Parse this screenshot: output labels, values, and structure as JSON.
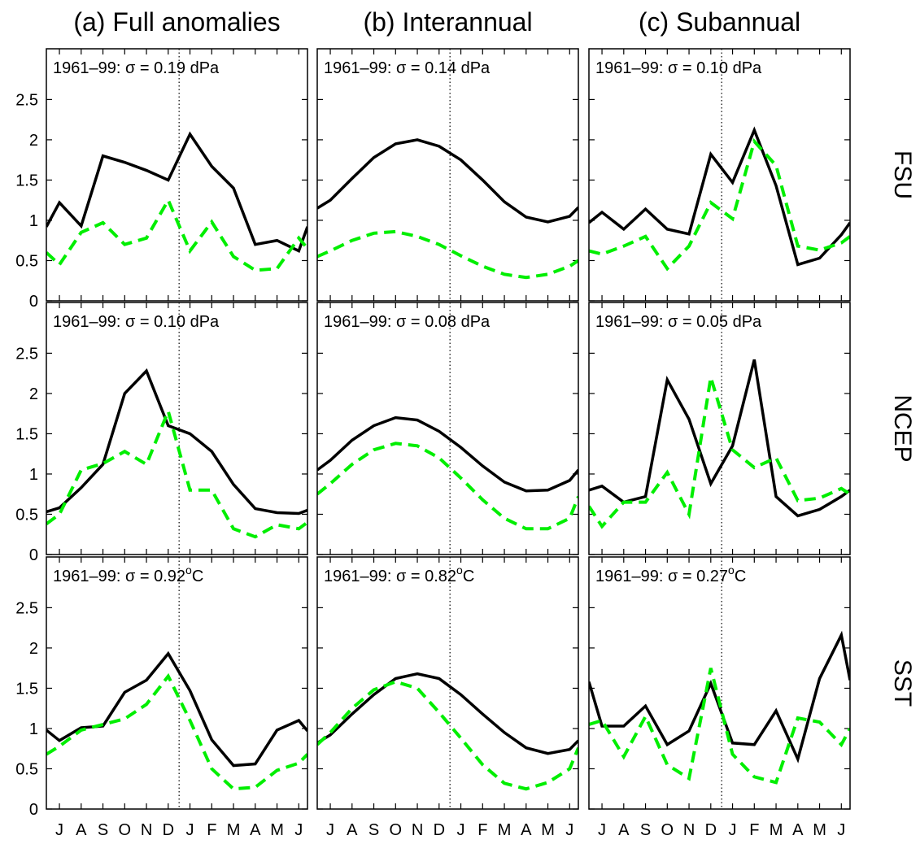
{
  "column_titles": [
    "(a) Full anomalies",
    "(b) Interannual",
    "(c) Subannual"
  ],
  "row_labels": [
    "FSU",
    "NCEP",
    "SST"
  ],
  "chart_data": [
    {
      "type": "line",
      "annotation": [
        "1961–99:  σ = 0.19 dPa"
      ],
      "x": [
        0.4,
        1,
        2,
        3,
        4,
        5,
        6,
        7,
        8,
        9,
        10,
        11,
        12,
        12.4
      ],
      "xlim": [
        0.4,
        12.4
      ],
      "ylim": [
        0,
        3.13
      ],
      "yticks": [
        0,
        0.5,
        1,
        1.5,
        2,
        2.5
      ],
      "xticks": [
        {
          "value": 1,
          "label": "J"
        },
        {
          "value": 2,
          "label": "A"
        },
        {
          "value": 3,
          "label": "S"
        },
        {
          "value": 4,
          "label": "O"
        },
        {
          "value": 5,
          "label": "N"
        },
        {
          "value": 6,
          "label": "D"
        },
        {
          "value": 7,
          "label": "J"
        },
        {
          "value": 8,
          "label": "F"
        },
        {
          "value": 9,
          "label": "M"
        },
        {
          "value": 10,
          "label": "A"
        },
        {
          "value": 11,
          "label": "M"
        },
        {
          "value": 12,
          "label": "J"
        }
      ],
      "divider": 6.5,
      "series": [
        {
          "color": "#000000",
          "dashed": false,
          "values": [
            0.92,
            1.22,
            0.93,
            1.8,
            1.72,
            1.62,
            1.5,
            2.07,
            1.67,
            1.4,
            0.7,
            0.75,
            0.62,
            0.92
          ]
        },
        {
          "color": "#00ee00",
          "dashed": true,
          "values": [
            0.6,
            0.45,
            0.85,
            0.97,
            0.7,
            0.78,
            1.25,
            0.62,
            0.98,
            0.55,
            0.38,
            0.4,
            0.78,
            0.65
          ]
        }
      ]
    },
    {
      "type": "line",
      "annotation": [
        "1961–99:  σ = 0.14 dPa"
      ],
      "x": [
        0.4,
        1,
        2,
        3,
        4,
        5,
        6,
        7,
        8,
        9,
        10,
        11,
        12,
        12.4
      ],
      "xlim": [
        0.4,
        12.4
      ],
      "ylim": [
        0,
        3.13
      ],
      "yticks": [
        0,
        0.5,
        1,
        1.5,
        2,
        2.5
      ],
      "xticks": [
        {
          "value": 1,
          "label": "J"
        },
        {
          "value": 2,
          "label": "A"
        },
        {
          "value": 3,
          "label": "S"
        },
        {
          "value": 4,
          "label": "O"
        },
        {
          "value": 5,
          "label": "N"
        },
        {
          "value": 6,
          "label": "D"
        },
        {
          "value": 7,
          "label": "J"
        },
        {
          "value": 8,
          "label": "F"
        },
        {
          "value": 9,
          "label": "M"
        },
        {
          "value": 10,
          "label": "A"
        },
        {
          "value": 11,
          "label": "M"
        },
        {
          "value": 12,
          "label": "J"
        }
      ],
      "divider": 6.5,
      "series": [
        {
          "color": "#000000",
          "dashed": false,
          "values": [
            1.15,
            1.25,
            1.52,
            1.78,
            1.95,
            2.0,
            1.92,
            1.75,
            1.5,
            1.23,
            1.04,
            0.98,
            1.05,
            1.16
          ]
        },
        {
          "color": "#00ee00",
          "dashed": true,
          "values": [
            0.55,
            0.62,
            0.75,
            0.84,
            0.86,
            0.8,
            0.7,
            0.56,
            0.43,
            0.33,
            0.29,
            0.33,
            0.43,
            0.5
          ]
        }
      ]
    },
    {
      "type": "line",
      "annotation": [
        "1961–99:  σ = 0.10 dPa"
      ],
      "x": [
        0.4,
        1,
        2,
        3,
        4,
        5,
        6,
        7,
        8,
        9,
        10,
        11,
        12,
        12.4
      ],
      "xlim": [
        0.4,
        12.4
      ],
      "ylim": [
        0,
        3.13
      ],
      "yticks": [
        0,
        0.5,
        1,
        1.5,
        2,
        2.5
      ],
      "xticks": [
        {
          "value": 1,
          "label": "J"
        },
        {
          "value": 2,
          "label": "A"
        },
        {
          "value": 3,
          "label": "S"
        },
        {
          "value": 4,
          "label": "O"
        },
        {
          "value": 5,
          "label": "N"
        },
        {
          "value": 6,
          "label": "D"
        },
        {
          "value": 7,
          "label": "J"
        },
        {
          "value": 8,
          "label": "F"
        },
        {
          "value": 9,
          "label": "M"
        },
        {
          "value": 10,
          "label": "A"
        },
        {
          "value": 11,
          "label": "M"
        },
        {
          "value": 12,
          "label": "J"
        }
      ],
      "divider": 6.5,
      "series": [
        {
          "color": "#000000",
          "dashed": false,
          "values": [
            0.97,
            1.1,
            0.89,
            1.14,
            0.89,
            0.83,
            1.82,
            1.47,
            2.12,
            1.43,
            0.45,
            0.53,
            0.82,
            0.97
          ]
        },
        {
          "color": "#00ee00",
          "dashed": true,
          "values": [
            0.62,
            0.58,
            0.68,
            0.8,
            0.4,
            0.68,
            1.22,
            1.02,
            1.98,
            1.68,
            0.68,
            0.63,
            0.72,
            0.8
          ]
        }
      ]
    },
    {
      "type": "line",
      "annotation": [
        "1961–99:  σ = 0.10 dPa"
      ],
      "x": [
        0.4,
        1,
        2,
        3,
        4,
        5,
        6,
        7,
        8,
        9,
        10,
        11,
        12,
        12.4
      ],
      "xlim": [
        0.4,
        12.4
      ],
      "ylim": [
        0,
        3.13
      ],
      "yticks": [
        0,
        0.5,
        1,
        1.5,
        2,
        2.5
      ],
      "xticks": [
        {
          "value": 1,
          "label": "J"
        },
        {
          "value": 2,
          "label": "A"
        },
        {
          "value": 3,
          "label": "S"
        },
        {
          "value": 4,
          "label": "O"
        },
        {
          "value": 5,
          "label": "N"
        },
        {
          "value": 6,
          "label": "D"
        },
        {
          "value": 7,
          "label": "J"
        },
        {
          "value": 8,
          "label": "F"
        },
        {
          "value": 9,
          "label": "M"
        },
        {
          "value": 10,
          "label": "A"
        },
        {
          "value": 11,
          "label": "M"
        },
        {
          "value": 12,
          "label": "J"
        }
      ],
      "divider": 6.5,
      "series": [
        {
          "color": "#000000",
          "dashed": false,
          "values": [
            0.53,
            0.58,
            0.83,
            1.12,
            2.0,
            2.28,
            1.6,
            1.5,
            1.28,
            0.87,
            0.57,
            0.52,
            0.51,
            0.55
          ]
        },
        {
          "color": "#00ee00",
          "dashed": true,
          "values": [
            0.38,
            0.5,
            1.05,
            1.13,
            1.28,
            1.12,
            1.78,
            0.8,
            0.8,
            0.32,
            0.22,
            0.37,
            0.32,
            0.4
          ]
        }
      ]
    },
    {
      "type": "line",
      "annotation": [
        "1961–99:  σ = 0.08 dPa"
      ],
      "x": [
        0.4,
        1,
        2,
        3,
        4,
        5,
        6,
        7,
        8,
        9,
        10,
        11,
        12,
        12.4
      ],
      "xlim": [
        0.4,
        12.4
      ],
      "ylim": [
        0,
        3.13
      ],
      "yticks": [
        0,
        0.5,
        1,
        1.5,
        2,
        2.5
      ],
      "xticks": [
        {
          "value": 1,
          "label": "J"
        },
        {
          "value": 2,
          "label": "A"
        },
        {
          "value": 3,
          "label": "S"
        },
        {
          "value": 4,
          "label": "O"
        },
        {
          "value": 5,
          "label": "N"
        },
        {
          "value": 6,
          "label": "D"
        },
        {
          "value": 7,
          "label": "J"
        },
        {
          "value": 8,
          "label": "F"
        },
        {
          "value": 9,
          "label": "M"
        },
        {
          "value": 10,
          "label": "A"
        },
        {
          "value": 11,
          "label": "M"
        },
        {
          "value": 12,
          "label": "J"
        }
      ],
      "divider": 6.5,
      "series": [
        {
          "color": "#000000",
          "dashed": false,
          "values": [
            1.05,
            1.17,
            1.42,
            1.6,
            1.7,
            1.67,
            1.53,
            1.33,
            1.1,
            0.9,
            0.79,
            0.8,
            0.92,
            1.05
          ]
        },
        {
          "color": "#00ee00",
          "dashed": true,
          "values": [
            0.75,
            0.88,
            1.12,
            1.3,
            1.38,
            1.35,
            1.2,
            0.95,
            0.68,
            0.45,
            0.32,
            0.32,
            0.45,
            0.72
          ]
        }
      ]
    },
    {
      "type": "line",
      "annotation": [
        "1961–99:  σ = 0.05 dPa"
      ],
      "x": [
        0.4,
        1,
        2,
        3,
        4,
        5,
        6,
        7,
        8,
        9,
        10,
        11,
        12,
        12.4
      ],
      "xlim": [
        0.4,
        12.4
      ],
      "ylim": [
        0,
        3.13
      ],
      "yticks": [
        0,
        0.5,
        1,
        1.5,
        2,
        2.5
      ],
      "xticks": [
        {
          "value": 1,
          "label": "J"
        },
        {
          "value": 2,
          "label": "A"
        },
        {
          "value": 3,
          "label": "S"
        },
        {
          "value": 4,
          "label": "O"
        },
        {
          "value": 5,
          "label": "N"
        },
        {
          "value": 6,
          "label": "D"
        },
        {
          "value": 7,
          "label": "J"
        },
        {
          "value": 8,
          "label": "F"
        },
        {
          "value": 9,
          "label": "M"
        },
        {
          "value": 10,
          "label": "A"
        },
        {
          "value": 11,
          "label": "M"
        },
        {
          "value": 12,
          "label": "J"
        }
      ],
      "divider": 6.5,
      "series": [
        {
          "color": "#000000",
          "dashed": false,
          "values": [
            0.8,
            0.85,
            0.65,
            0.72,
            2.17,
            1.68,
            0.88,
            1.35,
            2.42,
            0.72,
            0.48,
            0.56,
            0.72,
            0.8
          ]
        },
        {
          "color": "#00ee00",
          "dashed": true,
          "values": [
            0.6,
            0.35,
            0.65,
            0.65,
            1.02,
            0.5,
            2.2,
            1.3,
            1.08,
            1.2,
            0.67,
            0.7,
            0.82,
            0.75
          ]
        }
      ]
    },
    {
      "type": "line",
      "annotation": [
        "1961–99:  σ = 0.92",
        "o",
        "C"
      ],
      "x": [
        0.4,
        1,
        2,
        3,
        4,
        5,
        6,
        7,
        8,
        9,
        10,
        11,
        12,
        12.4
      ],
      "xlim": [
        0.4,
        12.4
      ],
      "ylim": [
        0,
        3.13
      ],
      "yticks": [
        0,
        0.5,
        1,
        1.5,
        2,
        2.5
      ],
      "xticks": [
        {
          "value": 1,
          "label": "J"
        },
        {
          "value": 2,
          "label": "A"
        },
        {
          "value": 3,
          "label": "S"
        },
        {
          "value": 4,
          "label": "O"
        },
        {
          "value": 5,
          "label": "N"
        },
        {
          "value": 6,
          "label": "D"
        },
        {
          "value": 7,
          "label": "J"
        },
        {
          "value": 8,
          "label": "F"
        },
        {
          "value": 9,
          "label": "M"
        },
        {
          "value": 10,
          "label": "A"
        },
        {
          "value": 11,
          "label": "M"
        },
        {
          "value": 12,
          "label": "J"
        }
      ],
      "divider": 6.5,
      "series": [
        {
          "color": "#000000",
          "dashed": false,
          "values": [
            0.98,
            0.85,
            1.01,
            1.03,
            1.45,
            1.6,
            1.93,
            1.47,
            0.86,
            0.54,
            0.56,
            0.98,
            1.1,
            0.97
          ]
        },
        {
          "color": "#00ee00",
          "dashed": true,
          "values": [
            0.68,
            0.78,
            0.98,
            1.05,
            1.12,
            1.3,
            1.65,
            1.1,
            0.5,
            0.25,
            0.27,
            0.48,
            0.57,
            0.68
          ]
        }
      ]
    },
    {
      "type": "line",
      "annotation": [
        "1961–99:  σ = 0.82",
        "o",
        "C"
      ],
      "x": [
        0.4,
        1,
        2,
        3,
        4,
        5,
        6,
        7,
        8,
        9,
        10,
        11,
        12,
        12.4
      ],
      "xlim": [
        0.4,
        12.4
      ],
      "ylim": [
        0,
        3.13
      ],
      "yticks": [
        0,
        0.5,
        1,
        1.5,
        2,
        2.5
      ],
      "xticks": [
        {
          "value": 1,
          "label": "J"
        },
        {
          "value": 2,
          "label": "A"
        },
        {
          "value": 3,
          "label": "S"
        },
        {
          "value": 4,
          "label": "O"
        },
        {
          "value": 5,
          "label": "N"
        },
        {
          "value": 6,
          "label": "D"
        },
        {
          "value": 7,
          "label": "J"
        },
        {
          "value": 8,
          "label": "F"
        },
        {
          "value": 9,
          "label": "M"
        },
        {
          "value": 10,
          "label": "A"
        },
        {
          "value": 11,
          "label": "M"
        },
        {
          "value": 12,
          "label": "J"
        }
      ],
      "divider": 6.5,
      "series": [
        {
          "color": "#000000",
          "dashed": false,
          "values": [
            0.82,
            0.92,
            1.18,
            1.42,
            1.62,
            1.68,
            1.62,
            1.42,
            1.18,
            0.95,
            0.76,
            0.69,
            0.74,
            0.85
          ]
        },
        {
          "color": "#00ee00",
          "dashed": true,
          "values": [
            0.8,
            0.95,
            1.25,
            1.48,
            1.58,
            1.5,
            1.2,
            0.88,
            0.55,
            0.32,
            0.25,
            0.33,
            0.5,
            0.76
          ]
        }
      ]
    },
    {
      "type": "line",
      "annotation": [
        "1961–99:  σ = 0.27",
        "o",
        "C"
      ],
      "x": [
        0.4,
        1,
        2,
        3,
        4,
        5,
        6,
        7,
        8,
        9,
        10,
        11,
        12,
        12.4
      ],
      "xlim": [
        0.4,
        12.4
      ],
      "ylim": [
        0,
        3.13
      ],
      "yticks": [
        0,
        0.5,
        1,
        1.5,
        2,
        2.5
      ],
      "xticks": [
        {
          "value": 1,
          "label": "J"
        },
        {
          "value": 2,
          "label": "A"
        },
        {
          "value": 3,
          "label": "S"
        },
        {
          "value": 4,
          "label": "O"
        },
        {
          "value": 5,
          "label": "N"
        },
        {
          "value": 6,
          "label": "D"
        },
        {
          "value": 7,
          "label": "J"
        },
        {
          "value": 8,
          "label": "F"
        },
        {
          "value": 9,
          "label": "M"
        },
        {
          "value": 10,
          "label": "A"
        },
        {
          "value": 11,
          "label": "M"
        },
        {
          "value": 12,
          "label": "J"
        }
      ],
      "divider": 6.5,
      "series": [
        {
          "color": "#000000",
          "dashed": false,
          "values": [
            1.58,
            1.03,
            1.03,
            1.28,
            0.8,
            0.97,
            1.56,
            0.82,
            0.8,
            1.22,
            0.62,
            1.62,
            2.16,
            1.6
          ]
        },
        {
          "color": "#00ee00",
          "dashed": true,
          "values": [
            1.05,
            1.1,
            0.65,
            1.15,
            0.55,
            0.38,
            1.75,
            0.68,
            0.4,
            0.33,
            1.13,
            1.08,
            0.8,
            1.0
          ]
        }
      ]
    }
  ]
}
